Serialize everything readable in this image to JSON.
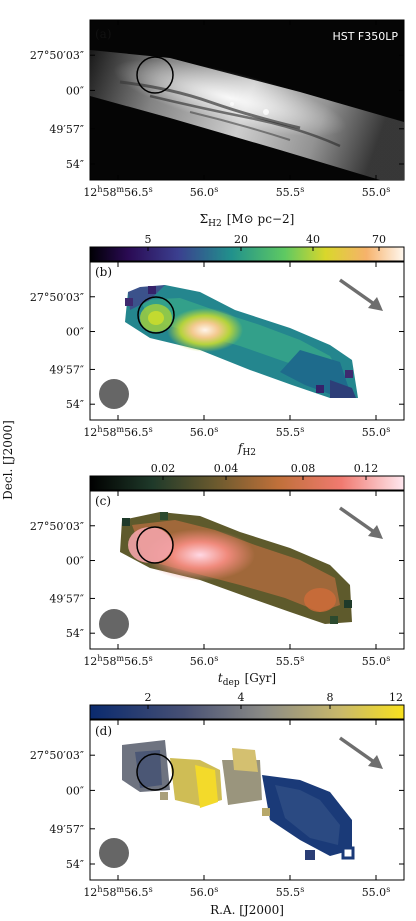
{
  "figure": {
    "ylabel": "Decl. [J2000]",
    "xlabel": "R.A. [J2000]",
    "yticks": [
      "27°50′03″",
      "00″",
      "49′57″",
      "54″"
    ],
    "xticks": [
      "12h58m56.5s",
      "56.0s",
      "55.5s",
      "55.0s"
    ],
    "xtick_parts": [
      {
        "main": "12",
        "h": "h",
        "m": "58",
        "mu": "m",
        "s": "56.5",
        "su": "s"
      },
      {
        "main": "56.0",
        "su": "s"
      },
      {
        "main": "55.5",
        "su": "s"
      },
      {
        "main": "55.0",
        "su": "s"
      }
    ]
  },
  "panels": [
    {
      "id": "a",
      "label": "(a)",
      "annotation": "HST F350LP",
      "colorbar": null
    },
    {
      "id": "b",
      "label": "(b)",
      "colorbar": {
        "title_main": "Σ",
        "title_sub": "H2",
        "title_rest": "[M⊙ pc−2]",
        "title": "ΣH2 [M⊙ pc−2]",
        "ticks": [
          "5",
          "20",
          "40",
          "70"
        ],
        "colormap": "viridis"
      }
    },
    {
      "id": "c",
      "label": "(c)",
      "colorbar": {
        "title_main": "f",
        "title_sub": "H2",
        "title_rest": "",
        "title": "fH2",
        "ticks": [
          "0.02",
          "0.04",
          "0.08",
          "0.12"
        ],
        "colormap": "copper-pink"
      }
    },
    {
      "id": "d",
      "label": "(d)",
      "colorbar": {
        "title_main": "t",
        "title_sub": "dep",
        "title_rest": "[Gyr]",
        "title": "tdep [Gyr]",
        "ticks": [
          "2",
          "4",
          "8",
          "12"
        ],
        "colormap": "cividis"
      }
    }
  ],
  "colors": {
    "beam": "#666666",
    "arrow": "#6e6e6e",
    "circle": "#000000",
    "frame": "#000000"
  }
}
